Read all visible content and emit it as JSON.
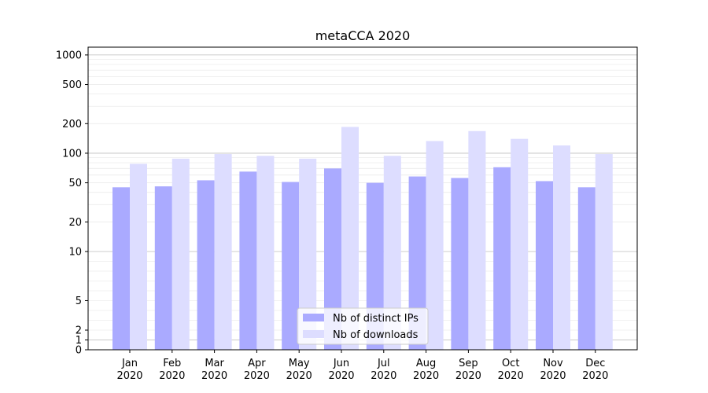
{
  "chart_data": {
    "type": "bar",
    "title": "metaCCA 2020",
    "xlabel": "",
    "ylabel": "",
    "yscale": "symlog",
    "ylim": [
      0,
      1200
    ],
    "yticks": [
      0,
      1,
      2,
      5,
      10,
      20,
      50,
      100,
      200,
      500,
      1000
    ],
    "grid": true,
    "legend_position": "bottom-center",
    "categories": [
      [
        "Jan",
        "2020"
      ],
      [
        "Feb",
        "2020"
      ],
      [
        "Mar",
        "2020"
      ],
      [
        "Apr",
        "2020"
      ],
      [
        "May",
        "2020"
      ],
      [
        "Jun",
        "2020"
      ],
      [
        "Jul",
        "2020"
      ],
      [
        "Aug",
        "2020"
      ],
      [
        "Sep",
        "2020"
      ],
      [
        "Oct",
        "2020"
      ],
      [
        "Nov",
        "2020"
      ],
      [
        "Dec",
        "2020"
      ]
    ],
    "series": [
      {
        "name": "Nb of distinct IPs",
        "color": "#aaaaff",
        "values": [
          45,
          46,
          53,
          65,
          51,
          70,
          50,
          58,
          56,
          72,
          52,
          45
        ]
      },
      {
        "name": "Nb of downloads",
        "color": "#ddddff",
        "values": [
          78,
          88,
          98,
          94,
          88,
          185,
          94,
          133,
          168,
          140,
          120,
          98
        ]
      }
    ]
  }
}
